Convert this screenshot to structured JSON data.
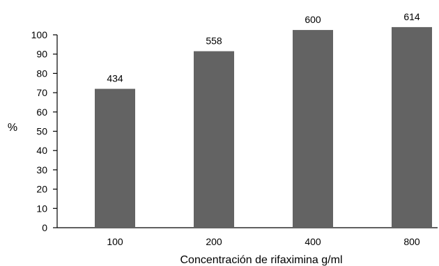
{
  "chart_data": {
    "type": "bar",
    "title": "",
    "xlabel": "Concentración de rifaximina g/ml",
    "ylabel": "%",
    "categories": [
      "100",
      "200",
      "400",
      "800"
    ],
    "values": [
      72,
      91.5,
      102.5,
      104
    ],
    "data_labels": [
      "434",
      "558",
      "600",
      "614"
    ],
    "ylim": [
      0,
      100
    ],
    "yticks": [
      0,
      10,
      20,
      30,
      40,
      50,
      60,
      70,
      80,
      90,
      100
    ],
    "bar_color": "#636363",
    "grid": false,
    "legend": "none"
  }
}
